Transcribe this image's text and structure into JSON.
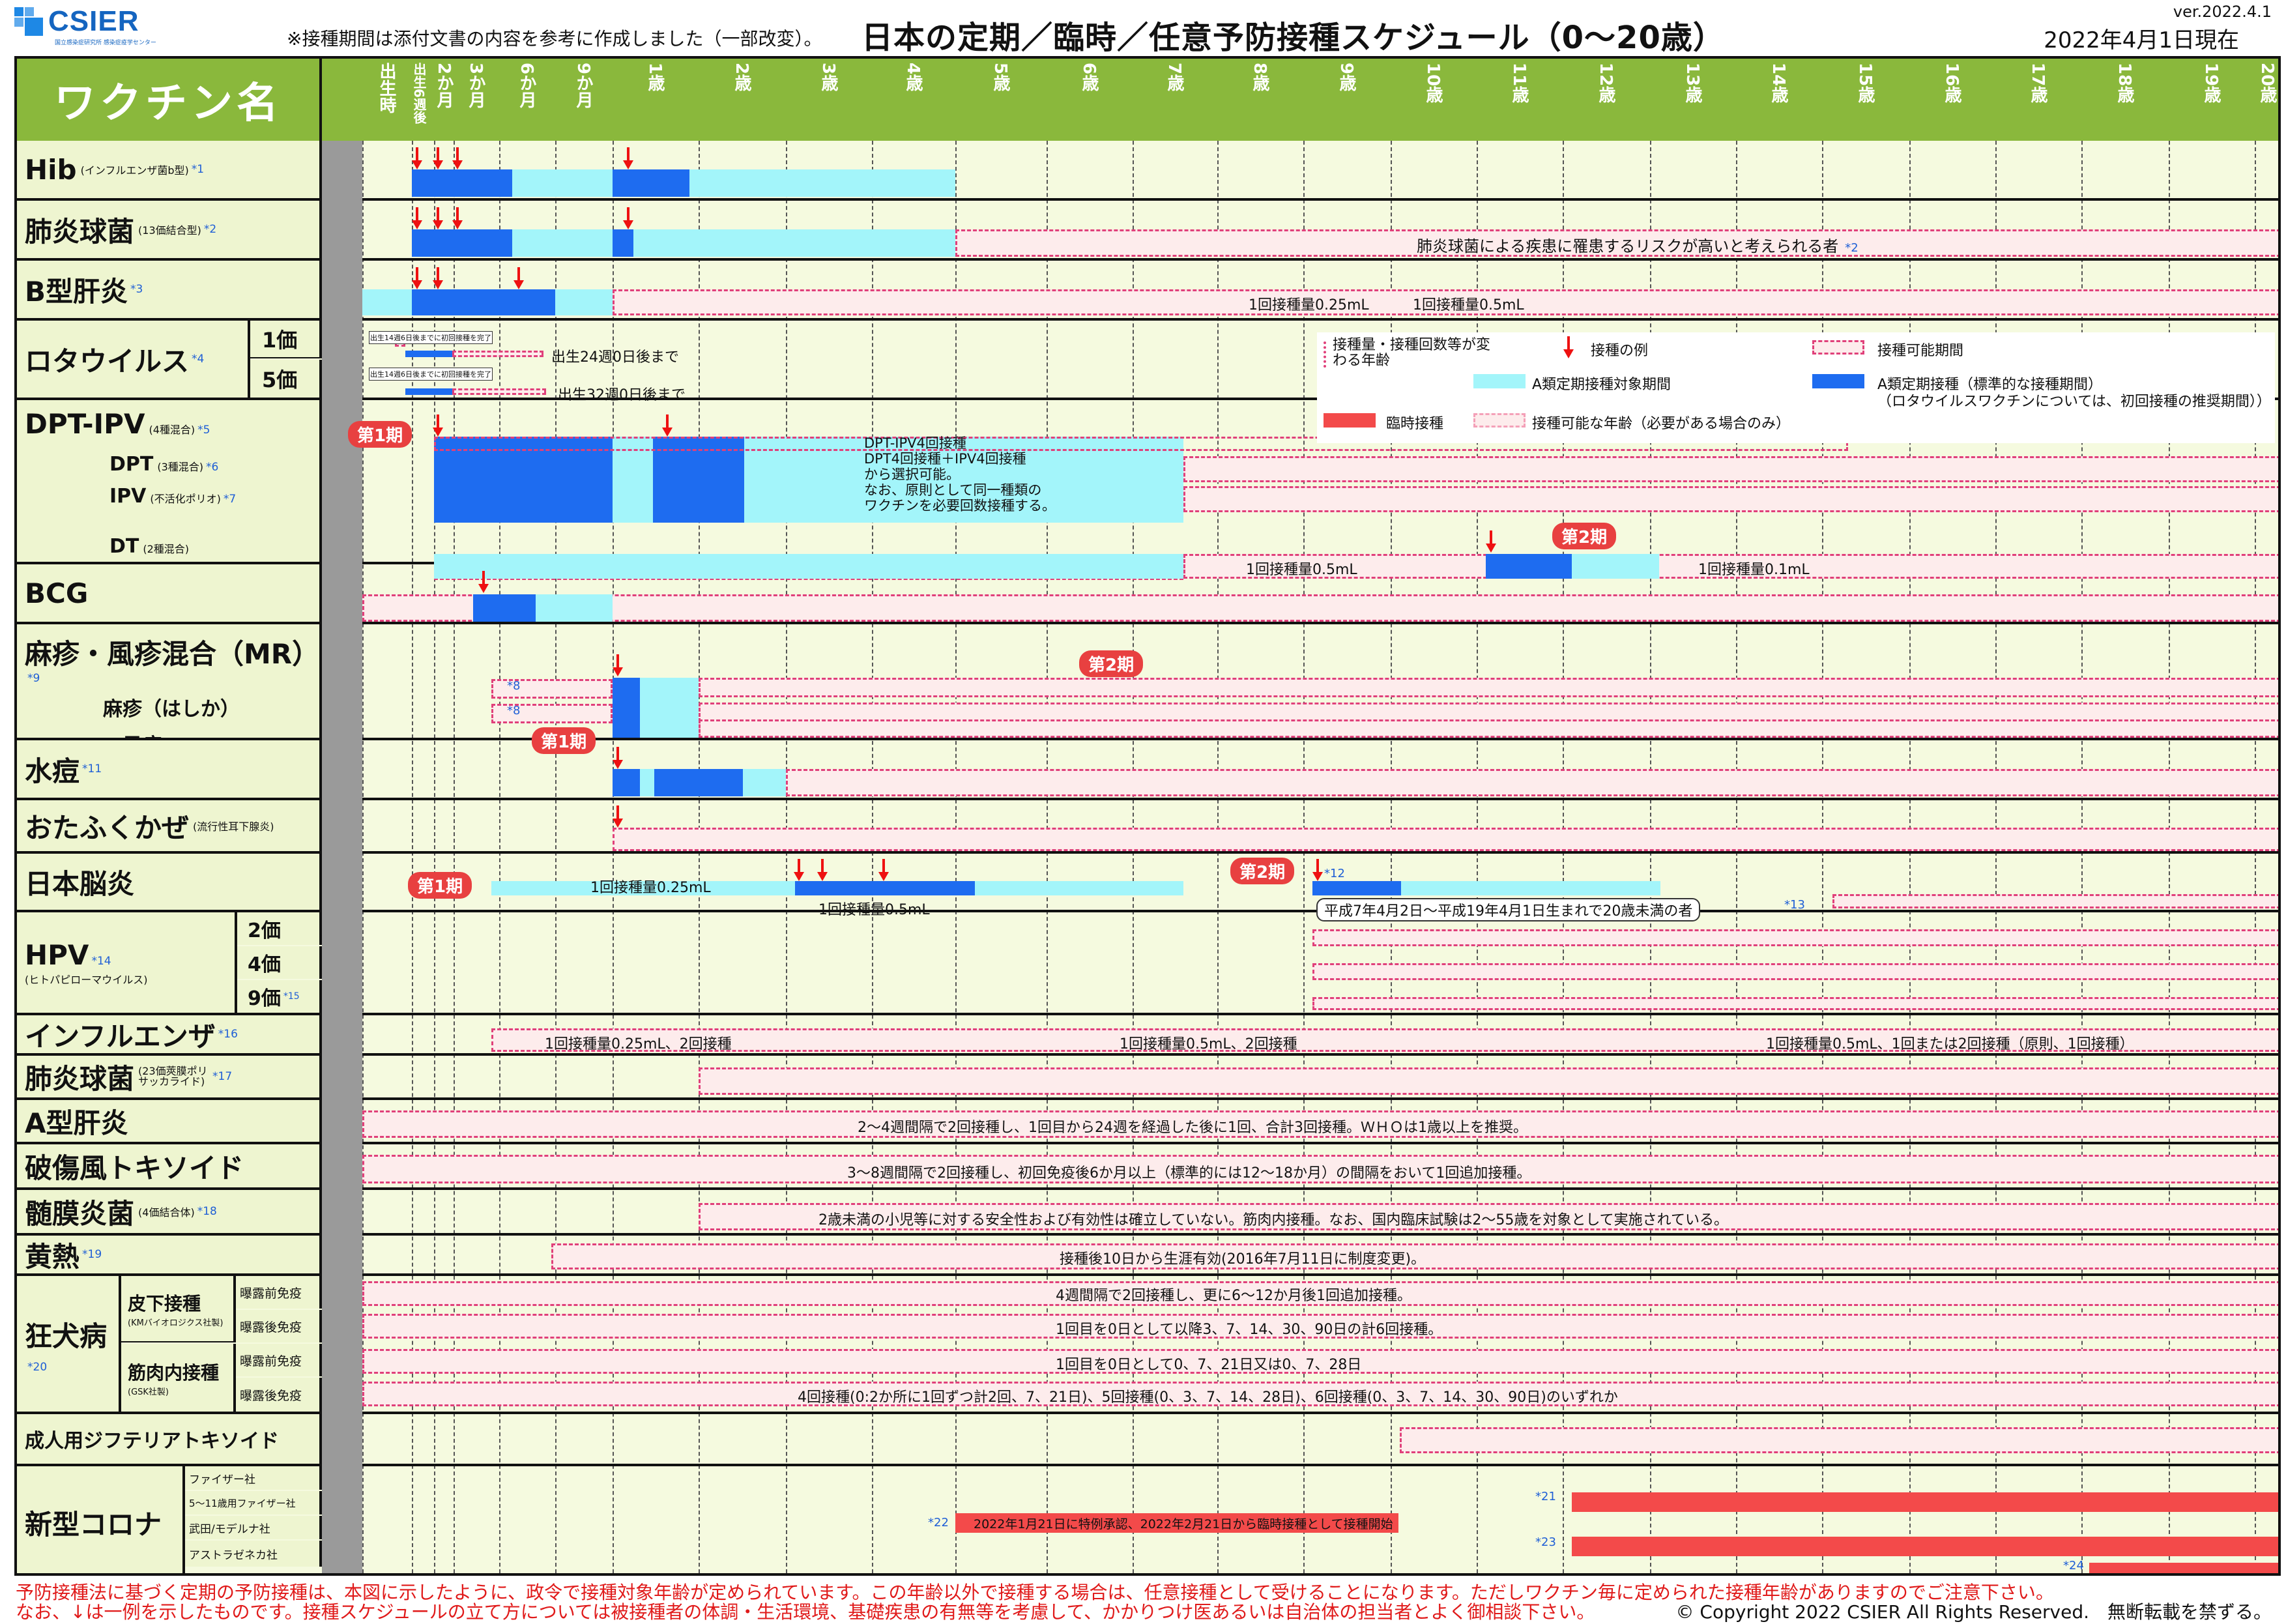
{
  "header": {
    "logo": "CSIER",
    "logo_sub": "国立感染症研究所 感染症疫学センター",
    "note": "※接種期間は添付文書の内容を参考に作成しました（一部改変）。",
    "title": "日本の定期／臨時／任意予防接種スケジュール（0〜20歳）",
    "version": "ver.2022.4.1",
    "as_of": "2022年4月1日現在"
  },
  "table_header": {
    "vaccine_col": "ワクチン名",
    "ages": [
      "出生時",
      "出生6週後",
      "2か月",
      "3か月",
      "6か月",
      "9か月",
      "1歳",
      "2歳",
      "3歳",
      "4歳",
      "5歳",
      "6歳",
      "7歳",
      "8歳",
      "9歳",
      "10歳",
      "11歳",
      "12歳",
      "13歳",
      "14歳",
      "15歳",
      "16歳",
      "17歳",
      "18歳",
      "19歳",
      "20歳"
    ]
  },
  "colors": {
    "light_blue": "#a3f5fa",
    "dark_blue": "#1e6cf0",
    "pink": "#fdecec",
    "red": "#f34a4a",
    "header_green": "#8ab83c"
  },
  "vaccines": {
    "hib": {
      "name": "Hib",
      "sub": "(インフルエンザ菌b型)",
      "note": "*1"
    },
    "pcv13": {
      "name": "肺炎球菌",
      "sub": "(13価結合型)",
      "note": "*2",
      "text": "肺炎球菌による疾患に罹患するリスクが高いと考えられる者",
      "text_note": "*2"
    },
    "hepb": {
      "name": "B型肝炎",
      "note": "*3",
      "dose1": "1回接種量0.25mL",
      "dose2": "1回接種量0.5mL"
    },
    "rota": {
      "name": "ロタウイルス",
      "note": "*4",
      "v1": "1価",
      "v5": "5価",
      "t1": "出生24週0日後まで",
      "t5": "出生32週0日後まで",
      "small": "出生14週6日後までに初回接種を完了"
    },
    "dpt": {
      "name": "DPT-IPV",
      "sub": "(4種混合)",
      "note": "*5",
      "dpt": "DPT",
      "dpt_sub": "(3種混合)",
      "dpt_note": "*6",
      "ipv": "IPV",
      "ipv_sub": "(不活化ポリオ)",
      "ipv_note": "*7",
      "dt": "DT",
      "dt_sub": "(2種混合)",
      "phase1": "第1期",
      "phase2": "第2期",
      "lines": [
        "DPT-IPV4回接種",
        "DPT4回接種＋IPV4回接種",
        "から選択可能。",
        "なお、原則として同一種類の",
        "ワクチンを必要回数接種する。"
      ],
      "dt_dose1": "1回接種量0.5mL",
      "dt_dose2": "1回接種量0.1mL"
    },
    "bcg": {
      "name": "BCG"
    },
    "mr": {
      "name": "麻疹・風疹混合（MR）",
      "note": "*9",
      "measles": "麻疹（はしか）",
      "rubella": "風疹",
      "note8": "*8",
      "phase1": "第1期",
      "phase2": "第2期"
    },
    "varicella": {
      "name": "水痘",
      "note": "*11"
    },
    "mumps": {
      "name": "おたふくかぜ",
      "sub": "(流行性耳下腺炎)"
    },
    "je": {
      "name": "日本脳炎",
      "phase1": "第1期",
      "phase2": "第2期",
      "dose1": "1回接種量0.25mL",
      "dose2": "1回接種量0.5mL",
      "note12": "*12",
      "note13": "*13",
      "special": "平成7年4月2日〜平成19年4月1日生まれで20歳未満の者"
    },
    "hpv": {
      "name": "HPV",
      "note": "*14",
      "sub": "(ヒトパピローマウイルス)",
      "v2": "2価",
      "v4": "4価",
      "v9": "9価",
      "note15": "*15"
    },
    "flu": {
      "name": "インフルエンザ",
      "note": "*16",
      "t1": "1回接種量0.25mL、2回接種",
      "t2": "1回接種量0.5mL、2回接種",
      "t3": "1回接種量0.5mL、1回または2回接種（原則、1回接種）"
    },
    "ppsv": {
      "name": "肺炎球菌",
      "sub": "(23価莢膜ポリサッカライド)",
      "note": "*17"
    },
    "hepa": {
      "name": "A型肝炎",
      "text": "2〜4週間隔で2回接種し、1回目から24週を経過した後に1回、合計3回接種。ＷＨＯは1歳以上を推奨。"
    },
    "tt": {
      "name": "破傷風トキソイド",
      "text": "3〜8週間隔で2回接種し、初回免疫後6か月以上（標準的には12〜18か月）の間隔をおいて1回追加接種。"
    },
    "mening": {
      "name": "髄膜炎菌",
      "sub": "(4価結合体)",
      "note": "*18",
      "text": "2歳未満の小児等に対する安全性および有効性は確立していない。筋肉内接種。なお、国内臨床試験は2〜55歳を対象として実施されている。"
    },
    "yf": {
      "name": "黄熱",
      "note": "*19",
      "text": "接種後10日から生涯有効(2016年7月11日に制度変更)。"
    },
    "rabies": {
      "name": "狂犬病",
      "note": "*20",
      "sc": "皮下接種",
      "sc_sub": "(KMバイオロジクス社製)",
      "im": "筋肉内接種",
      "im_sub": "(GSK社製)",
      "pre": "曝露前免疫",
      "post": "曝露後免疫",
      "t1": "4週間隔で2回接種し、更に6〜12か月後1回追加接種。",
      "t2": "1回目を0日として以降3、7、14、30、90日の計6回接種。",
      "t3": "1回目を0日として0、7、21日又は0、7、28日",
      "t4": "4回接種(0:2か所に1回ずつ計2回、7、21日)、5回接種(0、3、7、14、28日)、6回接種(0、3、7、14、30、90日)のいずれか"
    },
    "adt": {
      "name": "成人用ジフテリアトキソイド"
    },
    "covid": {
      "name": "新型コロナ",
      "pfizer": "ファイザー社",
      "pfizer_child": "5〜11歳用ファイザー社",
      "moderna": "武田/モデルナ社",
      "az": "アストラゼネカ社",
      "note21": "*21",
      "note22": "*22",
      "note23": "*23",
      "note24": "*24",
      "text": "2022年1月21日に特例承認、2022年2月21日から臨時接種として接種開始"
    }
  },
  "legend": {
    "change": "接種量・接種回数等が変わる年齢",
    "example": "接種の例",
    "possible": "接種可能期間",
    "a_target": "A類定期接種対象期間",
    "a_standard": "A類定期接種（標準的な接種期間）",
    "a_standard2": "（ロタウイルスワクチンについては、初回接種の推奨期間））",
    "temporary": "臨時接種",
    "possible_age": "接種可能な年齢（必要がある場合のみ）"
  },
  "footer": {
    "line1": "予防接種法に基づく定期の予防接種は、本図に示したように、政令で接種対象年齢が定められています。この年齢以外で接種する場合は、任意接種として受けることになります。ただしワクチン毎に定められた接種年齢がありますのでご注意下さい。",
    "line2": "なお、↓は一例を示したものです。接種スケジュールの立て方については被接種者の体調・生活環境、基礎疾患の有無等を考慮して、かかりつけ医あるいは自治体の担当者とよく御相談下さい。",
    "copyright": "© Copyright 2022 CSIER All Rights Reserved.　無断転載を禁ずる。"
  }
}
